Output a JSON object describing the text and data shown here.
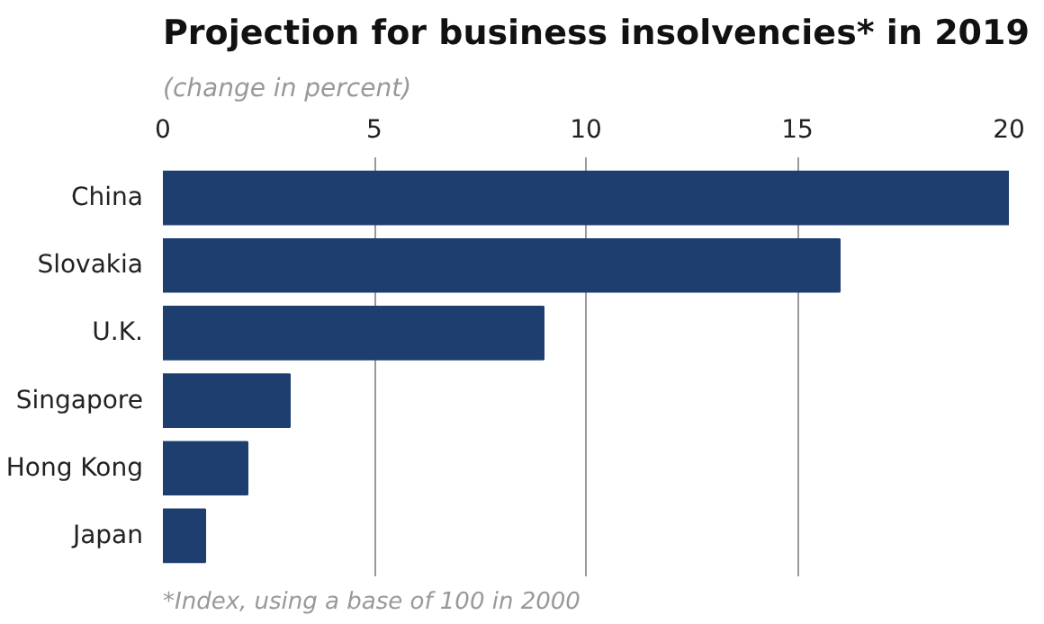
{
  "chart_data": {
    "type": "bar",
    "orientation": "horizontal",
    "title": "Projection for business insolvencies* in 2019",
    "subtitle": "(change in percent)",
    "categories": [
      "China",
      "Slovakia",
      "U.K.",
      "Singapore",
      "Hong Kong",
      "Japan"
    ],
    "values": [
      20,
      16,
      9,
      3,
      2,
      1
    ],
    "color": "#1d3e6e",
    "xlim": [
      0,
      20
    ],
    "xticks": [
      0,
      5,
      10,
      15,
      20
    ],
    "grid": "x",
    "annotations": [
      "*Index, using a base of 100 in 2000"
    ]
  }
}
